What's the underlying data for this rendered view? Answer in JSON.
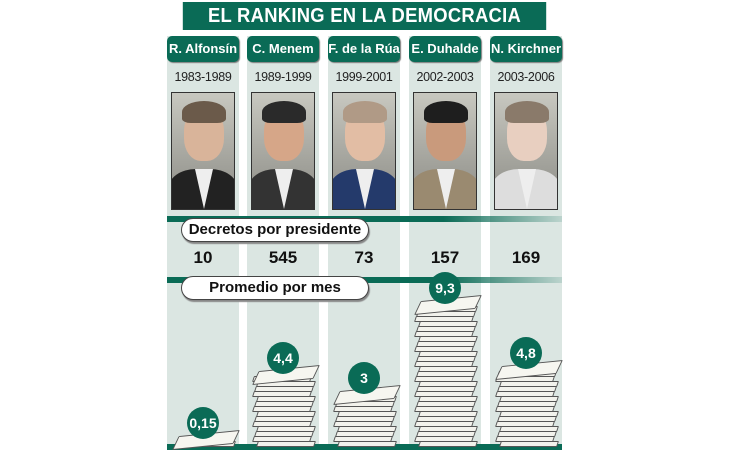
{
  "title": "EL RANKING EN LA DEMOCRACIA",
  "section_labels": {
    "decrees": "Decretos por presidente",
    "monthly": "Promedio por mes"
  },
  "colors": {
    "brand_green": "#0a6b56",
    "column_bg": "#dbe6e2",
    "paper": "#f2f2ec"
  },
  "presidents": [
    {
      "name": "R. Alfonsín",
      "years": "1983-1989",
      "decrees": "10",
      "monthly": "0,15",
      "sheets": 1,
      "skin": "#d9b49a",
      "hair": "#6b5a4a",
      "suit": "#222"
    },
    {
      "name": "C. Menem",
      "years": "1989-1999",
      "decrees": "545",
      "monthly": "4,4",
      "sheets": 14,
      "skin": "#d6a688",
      "hair": "#2a2a2a",
      "suit": "#333"
    },
    {
      "name": "F. de la Rúa",
      "years": "1999-2001",
      "decrees": "73",
      "monthly": "3",
      "sheets": 10,
      "skin": "#e2bda4",
      "hair": "#b09a86",
      "suit": "#243a6b"
    },
    {
      "name": "E. Duhalde",
      "years": "2002-2003",
      "decrees": "157",
      "monthly": "9,3",
      "sheets": 28,
      "skin": "#c99a7c",
      "hair": "#1e1e1e",
      "suit": "#9a8a70"
    },
    {
      "name": "N. Kirchner",
      "years": "2003-2006",
      "decrees": "169",
      "monthly": "4,8",
      "sheets": 15,
      "skin": "#e8cfc0",
      "hair": "#8a7a6a",
      "suit": "#ddd"
    }
  ],
  "chart_data": {
    "type": "bar",
    "title": "EL RANKING EN LA DEMOCRACIA",
    "categories": [
      "R. Alfonsín",
      "C. Menem",
      "F. de la Rúa",
      "E. Duhalde",
      "N. Kirchner"
    ],
    "periods": [
      "1983-1989",
      "1989-1999",
      "1999-2001",
      "2002-2003",
      "2003-2006"
    ],
    "series": [
      {
        "name": "Decretos por presidente",
        "values": [
          10,
          545,
          73,
          157,
          169
        ]
      },
      {
        "name": "Promedio por mes",
        "values": [
          0.15,
          4.4,
          3,
          9.3,
          4.8
        ]
      }
    ],
    "xlabel": "",
    "ylabel": "Promedio por mes",
    "grid": false,
    "legend": "none"
  }
}
